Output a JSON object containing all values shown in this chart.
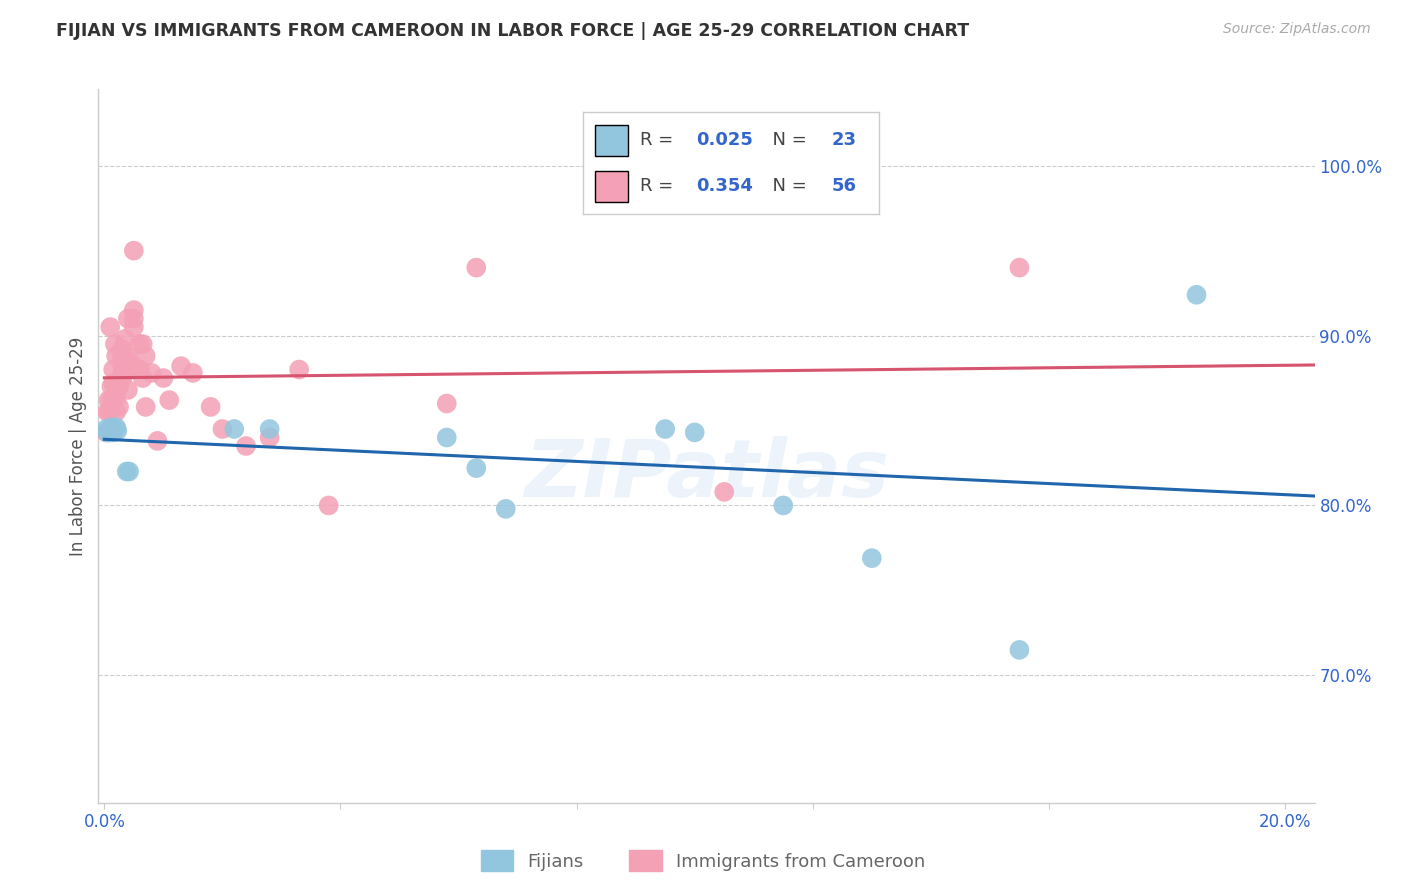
{
  "title": "FIJIAN VS IMMIGRANTS FROM CAMEROON IN LABOR FORCE | AGE 25-29 CORRELATION CHART",
  "source": "Source: ZipAtlas.com",
  "ylabel": "In Labor Force | Age 25-29",
  "xlim_min": -0.001,
  "xlim_max": 0.205,
  "ylim_min": 0.625,
  "ylim_max": 1.045,
  "yticks": [
    0.7,
    0.8,
    0.9,
    1.0
  ],
  "ytick_labels": [
    "70.0%",
    "80.0%",
    "90.0%",
    "100.0%"
  ],
  "xtick_positions": [
    0.0,
    0.04,
    0.08,
    0.12,
    0.16,
    0.2
  ],
  "xtick_labels": [
    "0.0%",
    "",
    "",
    "",
    "",
    "20.0%"
  ],
  "fijian_color": "#92c5de",
  "cameroon_color": "#f4a0b5",
  "fijian_line_color": "#2166ac",
  "cameroon_line_color": "#d6546e",
  "fijian_R": 0.025,
  "fijian_N": 23,
  "cameroon_R": 0.354,
  "cameroon_N": 56,
  "fijian_x": [
    0.0003,
    0.0005,
    0.0007,
    0.0008,
    0.001,
    0.0012,
    0.0013,
    0.0015,
    0.002,
    0.0022,
    0.0038,
    0.0042,
    0.022,
    0.028,
    0.058,
    0.063,
    0.068,
    0.095,
    0.1,
    0.115,
    0.13,
    0.155,
    0.185
  ],
  "fijian_y": [
    0.845,
    0.843,
    0.843,
    0.844,
    0.843,
    0.846,
    0.844,
    0.843,
    0.846,
    0.844,
    0.82,
    0.82,
    0.845,
    0.845,
    0.84,
    0.822,
    0.798,
    0.845,
    0.843,
    0.8,
    0.769,
    0.715,
    0.924
  ],
  "cameroon_x": [
    0.0003,
    0.0005,
    0.0007,
    0.0008,
    0.001,
    0.001,
    0.0012,
    0.0012,
    0.0015,
    0.0015,
    0.0018,
    0.002,
    0.002,
    0.002,
    0.002,
    0.0022,
    0.0025,
    0.0025,
    0.003,
    0.003,
    0.003,
    0.003,
    0.003,
    0.0033,
    0.0035,
    0.004,
    0.004,
    0.004,
    0.004,
    0.005,
    0.005,
    0.005,
    0.005,
    0.005,
    0.006,
    0.006,
    0.0065,
    0.0065,
    0.007,
    0.007,
    0.008,
    0.009,
    0.01,
    0.011,
    0.013,
    0.015,
    0.018,
    0.02,
    0.024,
    0.028,
    0.033,
    0.038,
    0.058,
    0.063,
    0.105,
    0.155
  ],
  "cameroon_y": [
    0.843,
    0.855,
    0.862,
    0.855,
    0.845,
    0.905,
    0.862,
    0.87,
    0.872,
    0.88,
    0.895,
    0.855,
    0.863,
    0.872,
    0.888,
    0.872,
    0.858,
    0.87,
    0.875,
    0.877,
    0.883,
    0.888,
    0.892,
    0.877,
    0.898,
    0.868,
    0.888,
    0.885,
    0.91,
    0.882,
    0.905,
    0.91,
    0.915,
    0.95,
    0.88,
    0.895,
    0.875,
    0.895,
    0.858,
    0.888,
    0.878,
    0.838,
    0.875,
    0.862,
    0.882,
    0.878,
    0.858,
    0.845,
    0.835,
    0.84,
    0.88,
    0.8,
    0.86,
    0.94,
    0.808,
    0.94
  ],
  "legend_fijian_label": "Fijians",
  "legend_cameroon_label": "Immigrants from Cameroon",
  "watermark": "ZIPatlas",
  "dashed_line_color": "#e8b0bb",
  "background_color": "#ffffff",
  "grid_color": "#cccccc",
  "label_color": "#3366cc",
  "title_color": "#333333",
  "axis_label_color": "#555555",
  "legend_text_color": "#444444"
}
